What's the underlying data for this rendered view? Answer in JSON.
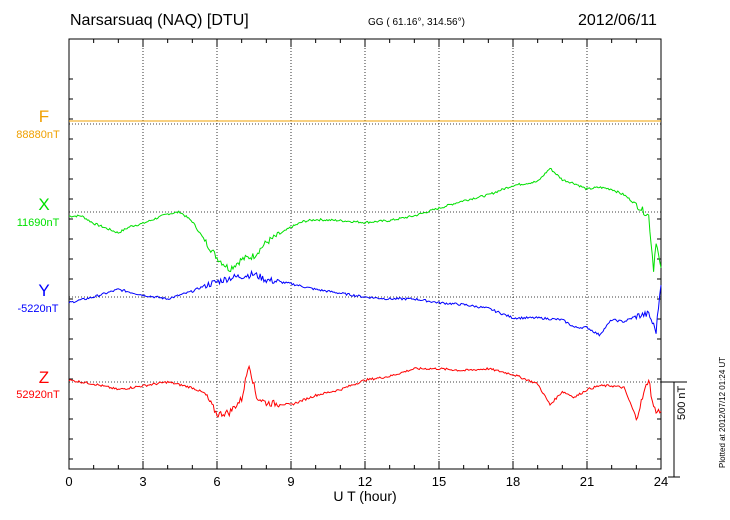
{
  "header": {
    "station": "Narsarsuaq (NAQ)  [DTU]",
    "coords": "GG ( 61.16°, 314.56°)",
    "date": "2012/06/11"
  },
  "plotted_note": "Plotted at 2012/07/12 01:24 UT",
  "chart_data": {
    "type": "line",
    "xlabel": "U T (hour)",
    "xlim": [
      0,
      24
    ],
    "xticks": [
      0,
      3,
      6,
      9,
      12,
      15,
      18,
      21,
      24
    ],
    "xtick_labels": [
      "0",
      "3",
      "6",
      "9",
      "12",
      "15",
      "18",
      "21",
      "24"
    ],
    "scale_bar": {
      "label": "500 nT",
      "nT": 500
    },
    "grid": true,
    "series": [
      {
        "name": "F",
        "baseline_label": "88880nT",
        "color": "#f0a000",
        "points": [
          [
            0,
            16
          ],
          [
            24,
            16
          ]
        ]
      },
      {
        "name": "X",
        "baseline_label": "11690nT",
        "color": "#00e000",
        "points": [
          [
            0,
            -22
          ],
          [
            0.5,
            -20
          ],
          [
            1,
            -60
          ],
          [
            1.5,
            -85
          ],
          [
            2,
            -110
          ],
          [
            2.5,
            -75
          ],
          [
            3,
            -60
          ],
          [
            3.5,
            -35
          ],
          [
            4,
            -10
          ],
          [
            4.5,
            0
          ],
          [
            5,
            -50
          ],
          [
            5.5,
            -150
          ],
          [
            6,
            -240
          ],
          [
            6.5,
            -300
          ],
          [
            7,
            -250
          ],
          [
            7.5,
            -230
          ],
          [
            8,
            -160
          ],
          [
            8.5,
            -120
          ],
          [
            9,
            -80
          ],
          [
            9.5,
            -50
          ],
          [
            10,
            -40
          ],
          [
            11,
            -45
          ],
          [
            12,
            -55
          ],
          [
            13,
            -45
          ],
          [
            14,
            -20
          ],
          [
            15,
            20
          ],
          [
            16,
            60
          ],
          [
            17,
            90
          ],
          [
            18,
            140
          ],
          [
            19,
            160
          ],
          [
            19.5,
            230
          ],
          [
            20,
            170
          ],
          [
            20.5,
            150
          ],
          [
            21,
            120
          ],
          [
            21.5,
            130
          ],
          [
            22,
            120
          ],
          [
            22.5,
            90
          ],
          [
            23,
            40
          ],
          [
            23.5,
            -20
          ],
          [
            23.7,
            -300
          ],
          [
            23.8,
            -150
          ],
          [
            24,
            -310
          ]
        ]
      },
      {
        "name": "Y",
        "baseline_label": "-5220nT",
        "color": "#0000ff",
        "points": [
          [
            0,
            -30
          ],
          [
            1,
            0
          ],
          [
            2,
            40
          ],
          [
            3,
            10
          ],
          [
            4,
            -10
          ],
          [
            5,
            30
          ],
          [
            5.5,
            60
          ],
          [
            6,
            80
          ],
          [
            6.5,
            100
          ],
          [
            7,
            110
          ],
          [
            7.5,
            120
          ],
          [
            8,
            90
          ],
          [
            9,
            70
          ],
          [
            10,
            40
          ],
          [
            11,
            20
          ],
          [
            12,
            0
          ],
          [
            13,
            -10
          ],
          [
            14,
            -10
          ],
          [
            15,
            -30
          ],
          [
            16,
            -40
          ],
          [
            17,
            -60
          ],
          [
            18,
            -110
          ],
          [
            19,
            -110
          ],
          [
            20,
            -120
          ],
          [
            20.5,
            -160
          ],
          [
            21,
            -160
          ],
          [
            21.5,
            -200
          ],
          [
            22,
            -120
          ],
          [
            22.5,
            -130
          ],
          [
            23,
            -100
          ],
          [
            23.5,
            -90
          ],
          [
            23.8,
            -180
          ],
          [
            24,
            80
          ]
        ]
      },
      {
        "name": "Z",
        "baseline_label": "52920nT",
        "color": "#ff0000",
        "points": [
          [
            0,
            10
          ],
          [
            1,
            -10
          ],
          [
            2,
            -40
          ],
          [
            3,
            -20
          ],
          [
            4,
            0
          ],
          [
            5,
            -30
          ],
          [
            5.5,
            -60
          ],
          [
            6,
            -170
          ],
          [
            6.5,
            -160
          ],
          [
            7,
            -90
          ],
          [
            7.3,
            100
          ],
          [
            7.6,
            -80
          ],
          [
            8,
            -110
          ],
          [
            9,
            -120
          ],
          [
            10,
            -70
          ],
          [
            11,
            -40
          ],
          [
            12,
            10
          ],
          [
            13,
            30
          ],
          [
            14,
            70
          ],
          [
            15,
            70
          ],
          [
            16,
            60
          ],
          [
            17,
            70
          ],
          [
            18,
            40
          ],
          [
            19,
            -10
          ],
          [
            19.5,
            -120
          ],
          [
            20,
            -50
          ],
          [
            20.5,
            -80
          ],
          [
            21,
            -40
          ],
          [
            21.5,
            -20
          ],
          [
            22,
            -20
          ],
          [
            22.5,
            -30
          ],
          [
            23,
            -190
          ],
          [
            23.5,
            20
          ],
          [
            23.7,
            -140
          ],
          [
            24,
            -160
          ]
        ]
      }
    ]
  }
}
